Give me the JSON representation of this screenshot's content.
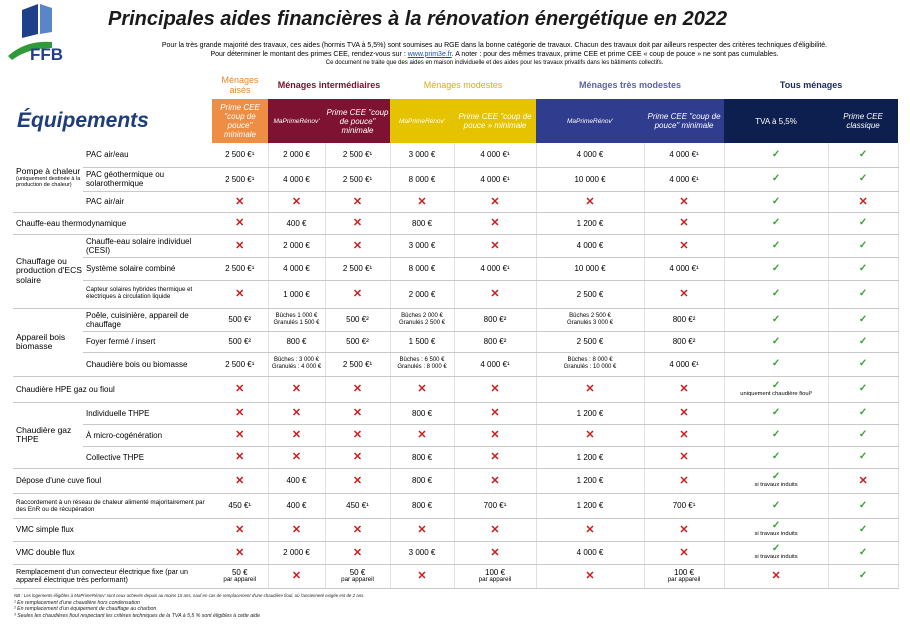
{
  "logo_text": "FFB",
  "title": "Principales aides financières à la rénovation énergétique en 2022",
  "intro": {
    "line1": "Pour la très grande majorité des travaux, ces aides (hormis TVA à 5,5%) sont soumises au RGE dans la bonne catégorie de travaux. Chacun des travaux doit par ailleurs respecter des critères techniques d'éligibilité.",
    "line2a": "Pour déterminer le montant des primes CEE, rendez-vous sur : ",
    "link": "www.prim3e.fr",
    "line2b": ". A noter : pour des mêmes travaux, prime CEE et prime CEE « coup de pouce » ne sont pas cumulables.",
    "line3": "Ce document ne traite que des aides en maison individuelle et des aides pour les travaux privatifs dans les bâtiments collectifs."
  },
  "groups": {
    "aises": "Ménages aisés",
    "inter": "Ménages intermédiaires",
    "modestes": "Ménages modestes",
    "tres": "Ménages très modestes",
    "tous": "Tous ménages"
  },
  "section_title": "Équipements",
  "headers": {
    "aises_cee": "Prime CEE \"coup de pouce\" minimale",
    "inter_mpr": "MaPrimeRénov'",
    "inter_cee": "Prime CEE \"coup de pouce\" minimale",
    "mod_mpr": "MaPrimeRénov'",
    "mod_cee": "Prime CEE \"coup de pouce » minimale",
    "tres_mpr": "MaPrimeRénov'",
    "tres_cee": "Prime CEE \"coup de pouce\" minimale",
    "tva": "TVA à 5,5%",
    "cee_classique": "Prime CEE classique"
  },
  "rows": {
    "pompe": {
      "cat": "Pompe à chaleur",
      "cat_note": "(uniquement destinée à la production de chaleur)"
    },
    "pac_eau": {
      "label": "PAC air/eau",
      "v1": "2 500 €¹",
      "v2": "2 000 €",
      "v3": "2 500 €¹",
      "v4": "3 000 €",
      "v5": "4 000 €¹",
      "v6": "4 000 €",
      "v7": "4 000 €¹"
    },
    "pac_geo": {
      "label": "PAC géothermique ou solarothermique",
      "v1": "2 500 €¹",
      "v2": "4 000 €",
      "v3": "2 500 €¹",
      "v4": "8 000 €",
      "v5": "4 000 €¹",
      "v6": "10 000 €",
      "v7": "4 000 €¹"
    },
    "pac_air": {
      "label": "PAC air/air"
    },
    "chauffe_eau": {
      "label": "Chauffe-eau thermodynamique",
      "v2": "400 €",
      "v4": "800 €",
      "v6": "1 200 €"
    },
    "ecs": {
      "cat": "Chauffage ou production d'ECS solaire"
    },
    "cesi": {
      "label": "Chauffe-eau solaire individuel (CESI)",
      "v2": "2 000 €",
      "v4": "3 000 €",
      "v6": "4 000 €"
    },
    "combine": {
      "label": "Système solaire combiné",
      "v1": "2 500 €¹",
      "v2": "4 000 €",
      "v3": "2 500 €¹",
      "v4": "8 000 €",
      "v5": "4 000 €¹",
      "v6": "10 000 €",
      "v7": "4 000 €¹"
    },
    "hybride": {
      "label": "Capteur solaires hybrides thermique et électriques à circulation liquide",
      "v2": "1 000 €",
      "v4": "2 000 €",
      "v6": "2 500 €"
    },
    "bois": {
      "cat": "Appareil bois biomasse"
    },
    "poele": {
      "label": "Poêle, cuisinière, appareil de chauffage",
      "v1": "500 €²",
      "v2a": "Bûches 1 000 €",
      "v2b": "Granulés 1 500 €",
      "v3": "500 €²",
      "v4a": "Bûches 2 000 €",
      "v4b": "Granulés 2 500 €",
      "v5": "800 €²",
      "v6a": "Bûches 2 500 €",
      "v6b": "Granulés 3 000 €",
      "v7": "800 €²"
    },
    "foyer": {
      "label": "Foyer fermé / insert",
      "v1": "500 €²",
      "v2": "800 €",
      "v3": "500 €²",
      "v4": "1 500 €",
      "v5": "800 €²",
      "v6": "2 500 €",
      "v7": "800 €²"
    },
    "chaudiere_bois": {
      "label": "Chaudière bois ou biomasse",
      "v1": "2 500 €¹",
      "v2a": "Bûches : 3 000 €",
      "v2b": "Granulés : 4 000 €",
      "v3": "2 500 €¹",
      "v4a": "Bûches : 6 500 €",
      "v4b": "Granulés : 8 000 €",
      "v5": "4 000 €¹",
      "v6a": "Bûches : 8 000 €",
      "v6b": "Granulés : 10 000 €",
      "v7": "4 000 €¹"
    },
    "hpe": {
      "label": "Chaudière HPE gaz ou fioul",
      "tva_note": "uniquement chaudière fioul³"
    },
    "thpe": {
      "cat": "Chaudière gaz THPE"
    },
    "indiv": {
      "label": "Individuelle THPE",
      "v4": "800 €",
      "v6": "1 200 €"
    },
    "cogen": {
      "label": "À micro-cogénération"
    },
    "collective": {
      "label": "Collective THPE",
      "v4": "800 €",
      "v6": "1 200 €"
    },
    "cuve": {
      "label": "Dépose d'une cuve fioul",
      "v2": "400 €",
      "v4": "800 €",
      "v6": "1 200 €",
      "tva_note": "si travaux induits"
    },
    "reseau": {
      "label": "Raccordement à un réseau de chaleur alimenté majoritairement par des EnR ou de récupération",
      "v1": "450 €¹",
      "v2": "400 €",
      "v3": "450 €¹",
      "v4": "800 €",
      "v5": "700 €¹",
      "v6": "1 200 €",
      "v7": "700 €¹"
    },
    "vmc_simple": {
      "label": "VMC simple flux",
      "tva_note": "si travaux induits"
    },
    "vmc_double": {
      "label": "VMC double flux",
      "v2": "2 000 €",
      "v4": "3 000 €",
      "v6": "4 000 €",
      "tva_note": "si travaux induits"
    },
    "convecteur": {
      "label": "Remplacement d'un convecteur électrique fixe (par un appareil électrique très performant)",
      "v1": "50 €",
      "v1n": "par appareil",
      "v3": "50 €",
      "v3n": "par appareil",
      "v5": "100 €",
      "v5n": "par appareil",
      "v7": "100 €",
      "v7n": "par appareil"
    }
  },
  "footnotes": {
    "nb": "NB : Les logements éligibles à MaPrimeRénov' sont ceux achevés depuis au moins 15 ans, sauf en cas de remplacement d'une chaudière fioul, où l'ancienneté exigée est de 2 ans.",
    "f1": "¹ En remplacement d'une chaudière hors condensation",
    "f2": "² En remplacement d'un équipement de chauffage au charbon",
    "f3": "³ Seules les chaudières fioul respectant les critères techniques de la TVA à 5,5 % sont éligibles à cette aide"
  },
  "colors": {
    "aises": "#ee8d44",
    "inter": "#7e1232",
    "modestes": "#e5c300",
    "tres": "#303c8e",
    "tous": "#0d1f4f",
    "check": "#39a035",
    "cross": "#cc1d1d"
  }
}
